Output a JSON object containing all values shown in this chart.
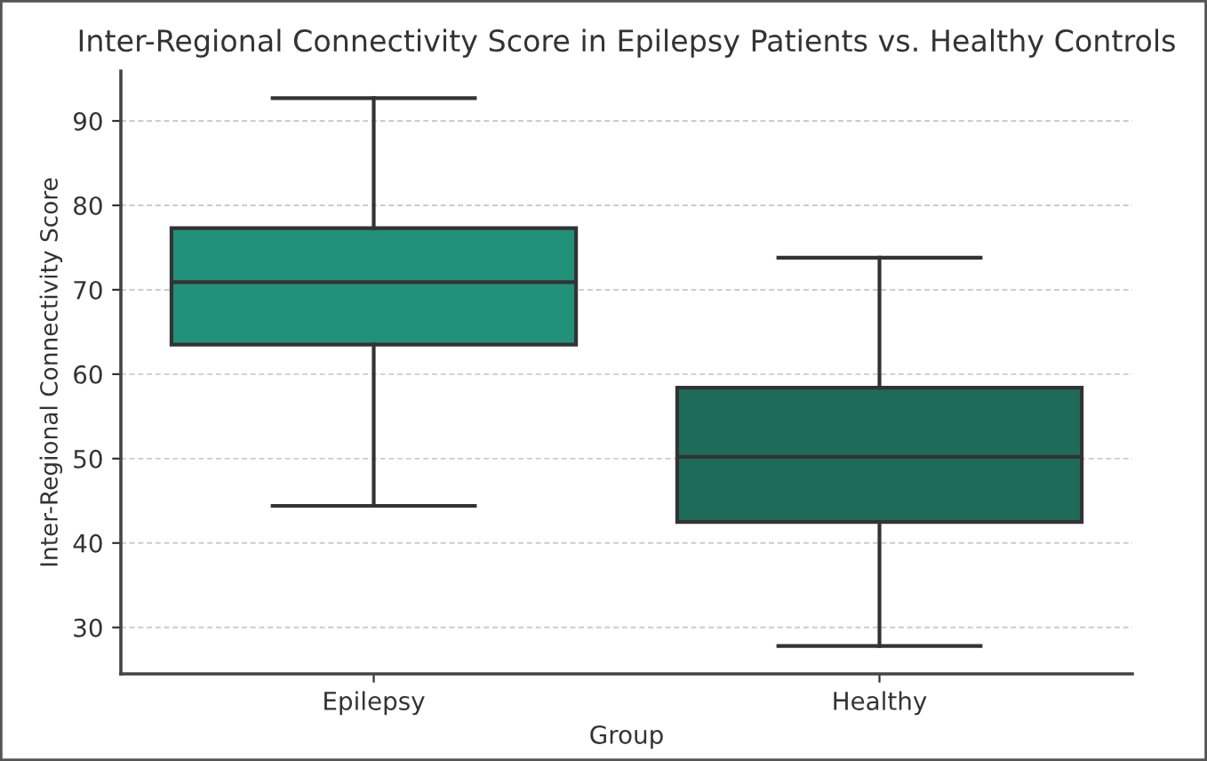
{
  "chart_data": {
    "type": "box",
    "title": "Inter-Regional Connectivity Score in Epilepsy Patients vs. Healthy Controls",
    "xlabel": "Group",
    "ylabel": "Inter-Regional Connectivity Score",
    "categories": [
      "Epilepsy",
      "Healthy"
    ],
    "colors": [
      "#21917a",
      "#1e6b5a"
    ],
    "boxes": [
      {
        "low": 44.4,
        "q1": 63.5,
        "median": 70.9,
        "q3": 77.3,
        "high": 92.7
      },
      {
        "low": 27.8,
        "q1": 42.5,
        "median": 50.2,
        "q3": 58.4,
        "high": 73.8
      }
    ],
    "ylim": [
      24.5,
      95.9
    ],
    "yticks": [
      30,
      40,
      50,
      60,
      70,
      80,
      90
    ],
    "grid": "y"
  }
}
